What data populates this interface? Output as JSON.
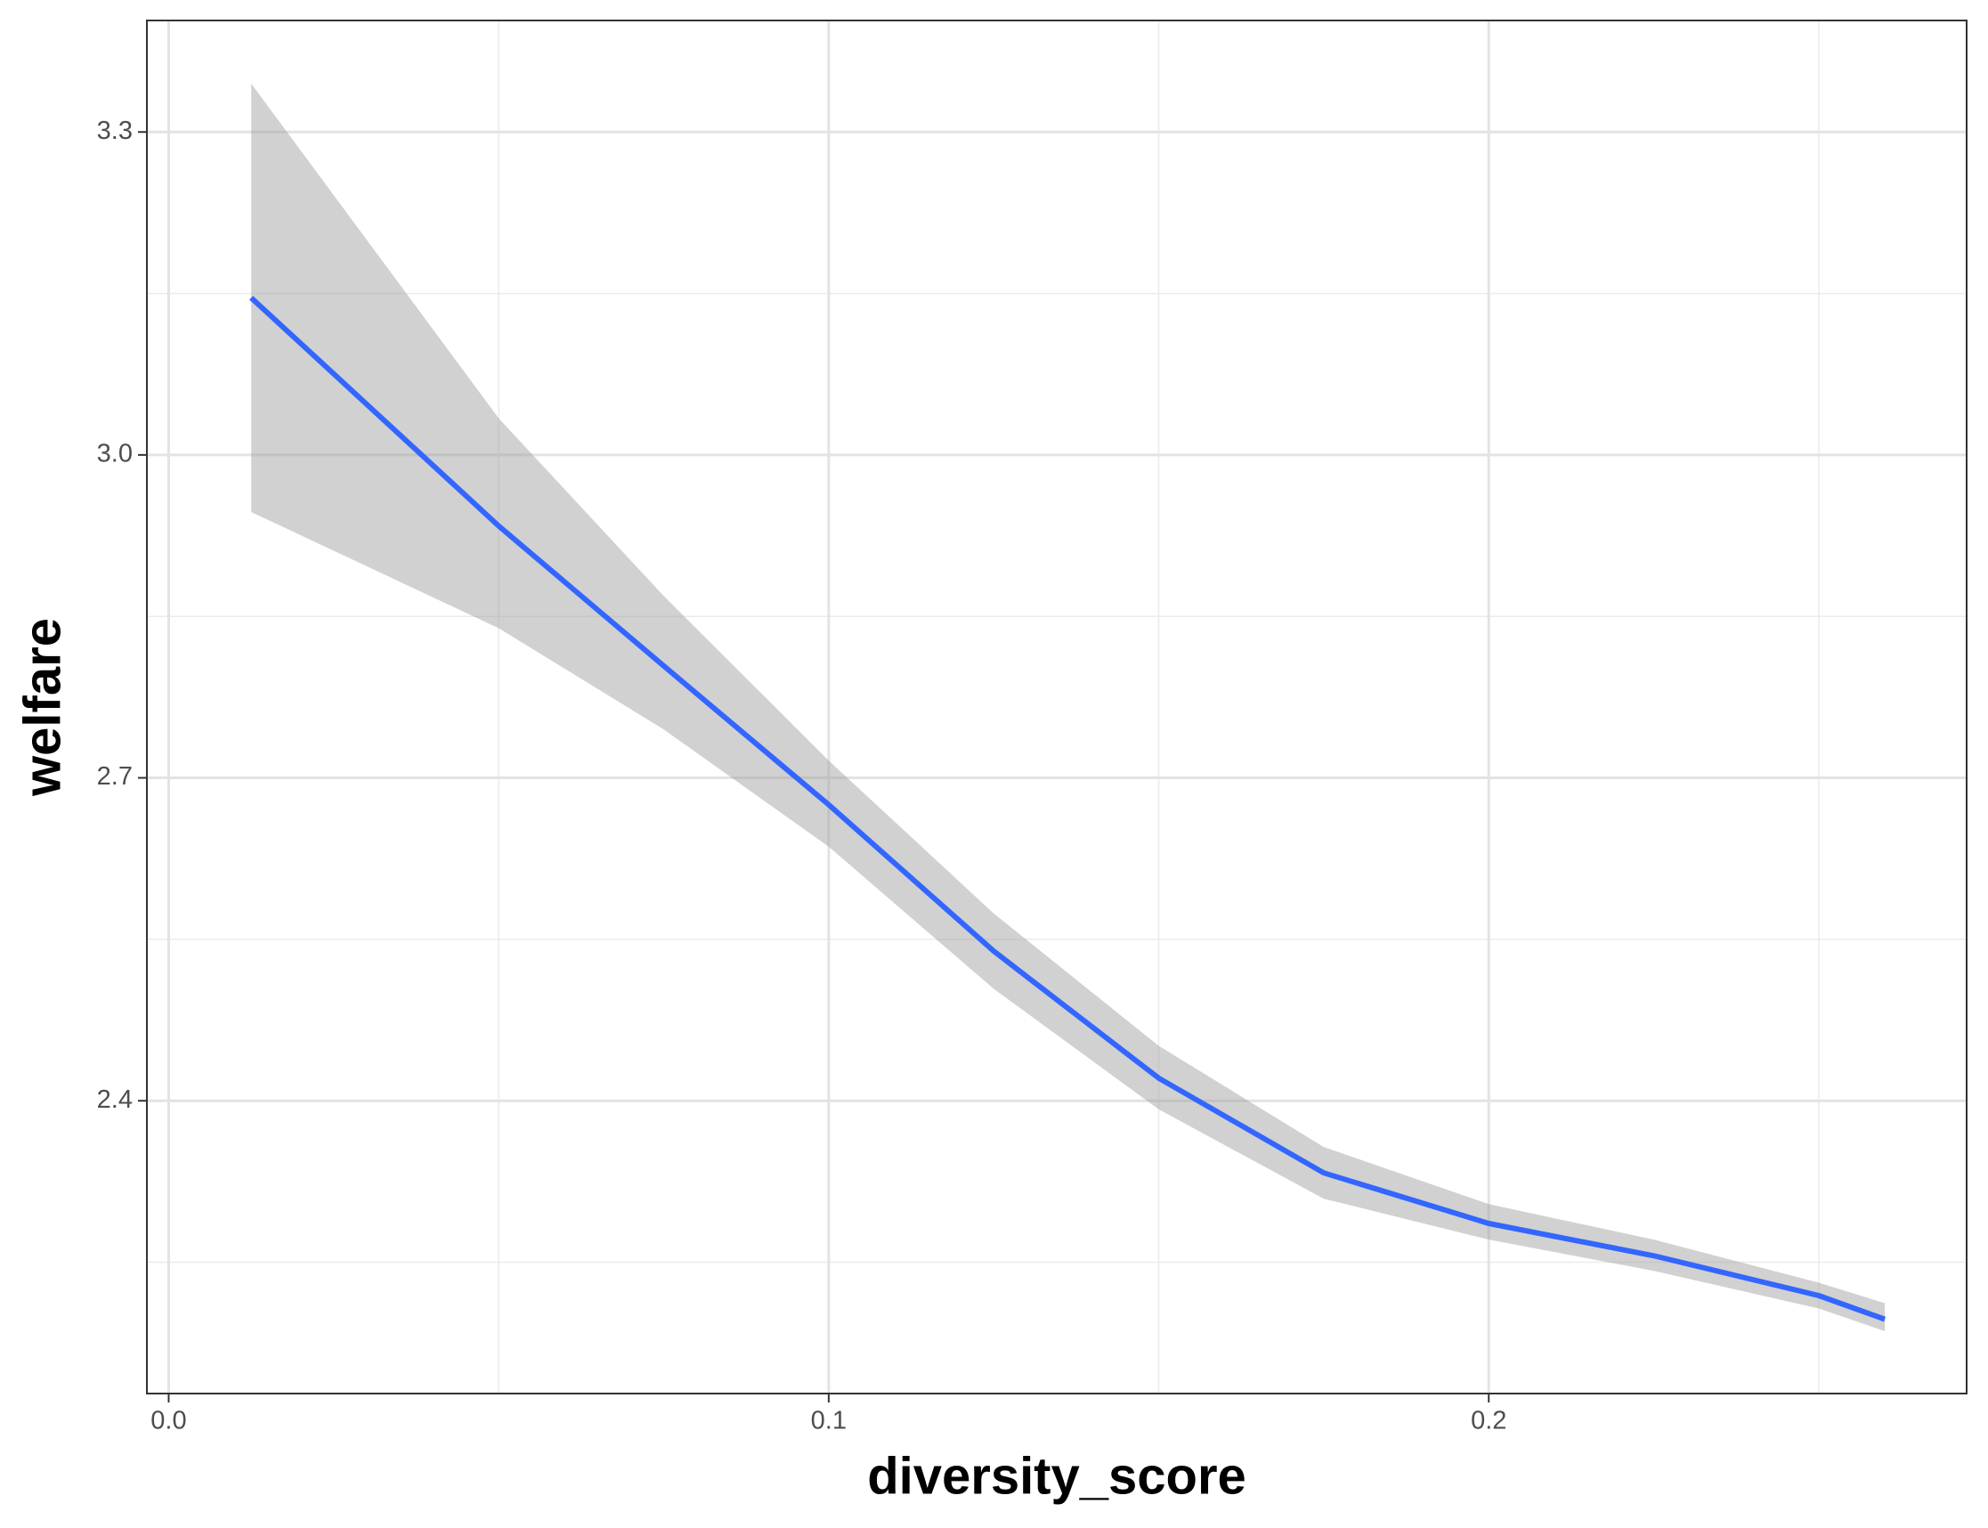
{
  "chart_data": {
    "type": "line",
    "xlabel": "diversity_score",
    "ylabel": "welfare",
    "x": [
      0.0125,
      0.05,
      0.075,
      0.1,
      0.125,
      0.15,
      0.175,
      0.2,
      0.225,
      0.25,
      0.26
    ],
    "values": [
      3.146,
      2.934,
      2.804,
      2.675,
      2.539,
      2.421,
      2.333,
      2.286,
      2.256,
      2.219,
      2.197
    ],
    "upper": [
      3.345,
      3.034,
      2.869,
      2.716,
      2.574,
      2.451,
      2.357,
      2.304,
      2.271,
      2.231,
      2.212
    ],
    "lower": [
      2.947,
      2.839,
      2.745,
      2.636,
      2.504,
      2.392,
      2.309,
      2.271,
      2.242,
      2.207,
      2.186
    ],
    "color": "#3366ff",
    "band_color": "#999999",
    "xlim": [
      -0.0033,
      0.2724
    ],
    "ylim": [
      2.128,
      3.4036
    ],
    "xticks": [
      {
        "value": 0,
        "label": "0.0"
      },
      0.1,
      0.2
    ],
    "yticks": [
      2.4,
      2.7,
      {
        "value": 3.0,
        "label": "3.0"
      },
      3.3
    ],
    "xminor": [
      0.05,
      0.15,
      0.25
    ],
    "yminor": [
      2.25,
      2.55,
      2.85,
      3.15
    ],
    "grid": true
  }
}
